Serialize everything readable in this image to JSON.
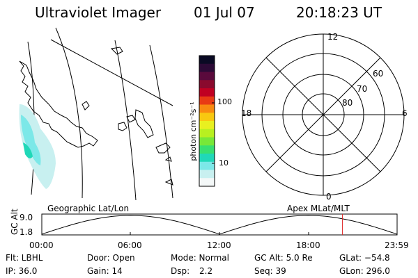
{
  "header": {
    "title": "Ultraviolet Imager",
    "date": "01 Jul 07",
    "time": "20:18:23 UT"
  },
  "colorbar": {
    "unit_label": "photon cm⁻²s⁻¹",
    "tick_labels": [
      "100",
      "10"
    ],
    "scale": "log",
    "colors": [
      "#0a0a24",
      "#2c0a36",
      "#5a0a3c",
      "#8a0a2e",
      "#c00022",
      "#e83a14",
      "#f88a10",
      "#f8c810",
      "#e8f020",
      "#b8f020",
      "#78e838",
      "#38e070",
      "#20d8b8",
      "#7ce8e8",
      "#c8f0f0",
      "#f4f8f8"
    ]
  },
  "map_left": {
    "label": "Geographic Lat/Lon"
  },
  "polar_plot": {
    "label": "Apex MLat/MLT",
    "mlt_labels": [
      "12",
      "18",
      "6",
      "0"
    ],
    "lat_labels": [
      "60",
      "70",
      "80"
    ]
  },
  "altitude_strip": {
    "ylabel": "GC Alt",
    "y_ticks": [
      "9.0",
      "1.8"
    ],
    "x_ticks": [
      "00:00",
      "06:00",
      "12:00",
      "18:00",
      "23:59"
    ],
    "current_time_hours": 20.31
  },
  "info": {
    "filter": "Flt: LBHL",
    "door": "Door: Open",
    "mode": "Mode: Normal",
    "gc_alt": "GC Alt: 5.0 Re",
    "glat": "GLat: −54.8",
    "ip": "IP: 36.0",
    "gain": "Gain: 14",
    "dsp_label": "Dsp:",
    "dsp_value": "2.2",
    "seq": "Seq: 39",
    "glon": "GLon: 296.0"
  }
}
